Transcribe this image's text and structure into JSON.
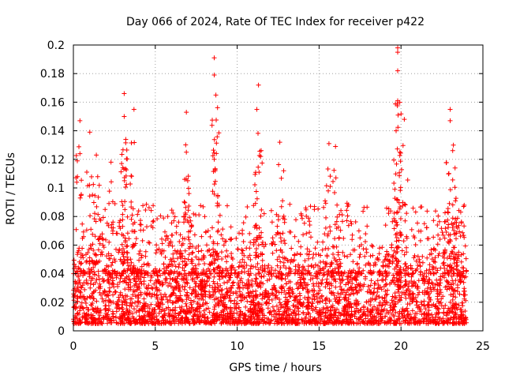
{
  "chart_data": {
    "type": "scatter",
    "title": "Day 066 of 2024, Rate Of TEC Index for receiver p422",
    "xlabel": "GPS time / hours",
    "ylabel": "ROTI / TECUs",
    "xlim": [
      0,
      25
    ],
    "ylim": [
      0,
      0.2
    ],
    "x_ticks": [
      0,
      5,
      10,
      15,
      20,
      25
    ],
    "y_ticks": [
      0,
      0.02,
      0.04,
      0.06,
      0.08,
      0.1,
      0.12,
      0.14,
      0.16,
      0.18,
      0.2
    ],
    "x_tick_labels": [
      "0",
      "5",
      "10",
      "15",
      "20",
      "25"
    ],
    "y_tick_labels": [
      "0",
      "0.02",
      "0.04",
      "0.06",
      "0.08",
      "0.1",
      "0.12",
      "0.14",
      "0.16",
      "0.18",
      "0.2"
    ],
    "grid": true,
    "marker": "+",
    "series_color": "#ff0000",
    "series": [
      {
        "name": "ROTI",
        "x_range": [
          0,
          24
        ],
        "typical_band": [
          0.005,
          0.04
        ],
        "peaks": [
          {
            "x": 0.4,
            "y": 0.147
          },
          {
            "x": 0.4,
            "y": 0.124
          },
          {
            "x": 1.0,
            "y": 0.139
          },
          {
            "x": 1.4,
            "y": 0.123
          },
          {
            "x": 2.3,
            "y": 0.118
          },
          {
            "x": 3.1,
            "y": 0.166
          },
          {
            "x": 3.1,
            "y": 0.15
          },
          {
            "x": 3.2,
            "y": 0.134
          },
          {
            "x": 3.7,
            "y": 0.155
          },
          {
            "x": 6.9,
            "y": 0.153
          },
          {
            "x": 6.9,
            "y": 0.125
          },
          {
            "x": 8.6,
            "y": 0.191
          },
          {
            "x": 8.6,
            "y": 0.179
          },
          {
            "x": 8.7,
            "y": 0.165
          },
          {
            "x": 8.6,
            "y": 0.12
          },
          {
            "x": 11.3,
            "y": 0.172
          },
          {
            "x": 11.2,
            "y": 0.155
          },
          {
            "x": 12.6,
            "y": 0.132
          },
          {
            "x": 15.6,
            "y": 0.131
          },
          {
            "x": 16.0,
            "y": 0.129
          },
          {
            "x": 19.8,
            "y": 0.198
          },
          {
            "x": 19.8,
            "y": 0.195
          },
          {
            "x": 19.8,
            "y": 0.182
          },
          {
            "x": 19.8,
            "y": 0.161
          },
          {
            "x": 19.7,
            "y": 0.14
          },
          {
            "x": 20.2,
            "y": 0.148
          },
          {
            "x": 23.0,
            "y": 0.155
          },
          {
            "x": 23.0,
            "y": 0.147
          },
          {
            "x": 23.2,
            "y": 0.13
          },
          {
            "x": 23.3,
            "y": 0.114
          }
        ]
      }
    ]
  }
}
